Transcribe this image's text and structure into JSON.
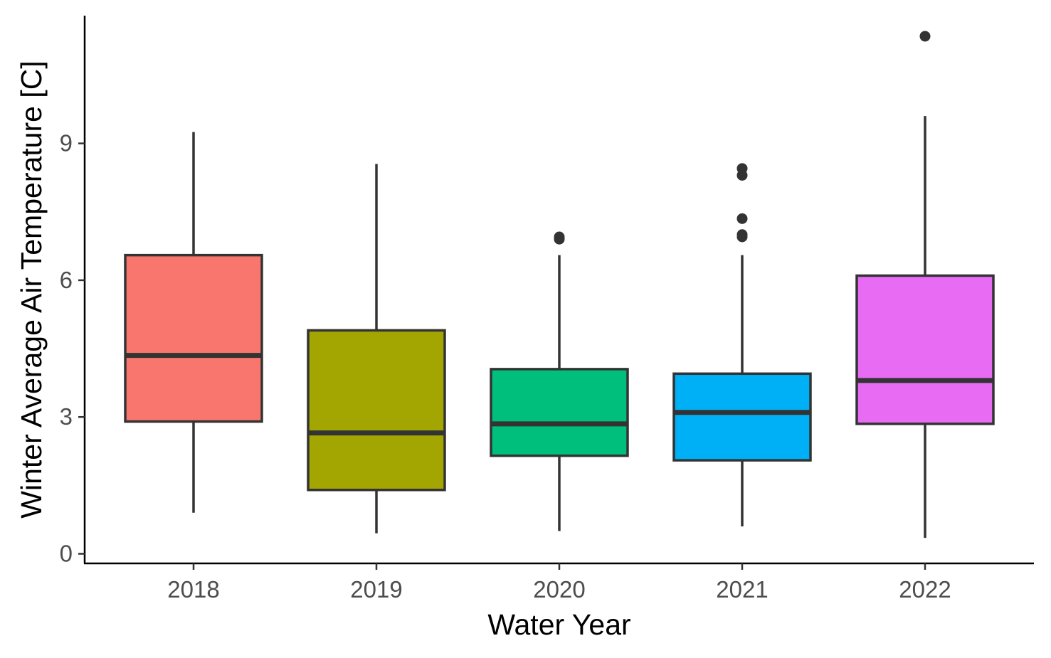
{
  "chart_data": {
    "type": "boxplot",
    "title": "",
    "xlabel": "Water Year",
    "ylabel": "Winter Average Air Temperature [C]",
    "ylim": [
      -0.2,
      11.6
    ],
    "yticks": [
      0,
      3,
      6,
      9
    ],
    "ytick_labels": [
      "0",
      "3",
      "6",
      "9"
    ],
    "grid": false,
    "legend": "none",
    "box_outline_color": "#333333",
    "series": [
      {
        "category": "2018",
        "color": "#F8766D",
        "whisker_low": 0.9,
        "q1": 2.9,
        "median": 4.35,
        "q3": 6.55,
        "whisker_high": 9.25,
        "outliers": []
      },
      {
        "category": "2019",
        "color": "#A3A500",
        "whisker_low": 0.45,
        "q1": 1.4,
        "median": 2.65,
        "q3": 4.9,
        "whisker_high": 8.55,
        "outliers": []
      },
      {
        "category": "2020",
        "color": "#00BF7D",
        "whisker_low": 0.5,
        "q1": 2.15,
        "median": 2.85,
        "q3": 4.05,
        "whisker_high": 6.55,
        "outliers": [
          6.9,
          6.95
        ]
      },
      {
        "category": "2021",
        "color": "#00B0F6",
        "whisker_low": 0.6,
        "q1": 2.05,
        "median": 3.1,
        "q3": 3.95,
        "whisker_high": 6.55,
        "outliers": [
          6.95,
          7.0,
          7.35,
          8.3,
          8.45
        ]
      },
      {
        "category": "2022",
        "color": "#E76BF3",
        "whisker_low": 0.35,
        "q1": 2.85,
        "median": 3.8,
        "q3": 6.1,
        "whisker_high": 9.6,
        "outliers": [
          11.35
        ]
      }
    ]
  }
}
